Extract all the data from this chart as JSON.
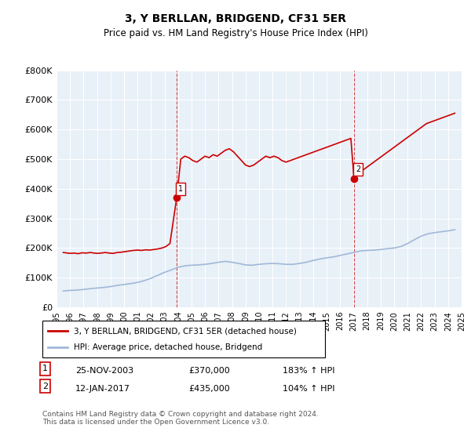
{
  "title": "3, Y BERLLAN, BRIDGEND, CF31 5ER",
  "subtitle": "Price paid vs. HM Land Registry's House Price Index (HPI)",
  "ylabel": "",
  "ylim": [
    0,
    800000
  ],
  "yticks": [
    0,
    100000,
    200000,
    300000,
    400000,
    500000,
    600000,
    700000,
    800000
  ],
  "ytick_labels": [
    "£0",
    "£100K",
    "£200K",
    "£300K",
    "£400K",
    "£500K",
    "£600K",
    "£700K",
    "£800K"
  ],
  "background_color": "#ffffff",
  "plot_bg_color": "#e8f0f8",
  "grid_color": "#ffffff",
  "hpi_line_color": "#a0b8d8",
  "price_line_color": "#cc0000",
  "sale1_date_num": 2003.9,
  "sale1_price": 370000,
  "sale2_date_num": 2017.03,
  "sale2_price": 435000,
  "sale1_label": "1",
  "sale2_label": "2",
  "legend_label_price": "3, Y BERLLAN, BRIDGEND, CF31 5ER (detached house)",
  "legend_label_hpi": "HPI: Average price, detached house, Bridgend",
  "table_row1": [
    "1",
    "25-NOV-2003",
    "£370,000",
    "183% ↑ HPI"
  ],
  "table_row2": [
    "2",
    "12-JAN-2017",
    "£435,000",
    "104% ↑ HPI"
  ],
  "footer": "Contains HM Land Registry data © Crown copyright and database right 2024.\nThis data is licensed under the Open Government Licence v3.0.",
  "hpi_data": {
    "years": [
      1995.5,
      1996.0,
      1996.5,
      1997.0,
      1997.5,
      1998.0,
      1998.5,
      1999.0,
      1999.5,
      2000.0,
      2000.5,
      2001.0,
      2001.5,
      2002.0,
      2002.5,
      2003.0,
      2003.5,
      2004.0,
      2004.5,
      2005.0,
      2005.5,
      2006.0,
      2006.5,
      2007.0,
      2007.5,
      2008.0,
      2008.5,
      2009.0,
      2009.5,
      2010.0,
      2010.5,
      2011.0,
      2011.5,
      2012.0,
      2012.5,
      2013.0,
      2013.5,
      2014.0,
      2014.5,
      2015.0,
      2015.5,
      2016.0,
      2016.5,
      2017.0,
      2017.5,
      2018.0,
      2018.5,
      2019.0,
      2019.5,
      2020.0,
      2020.5,
      2021.0,
      2021.5,
      2022.0,
      2022.5,
      2023.0,
      2023.5,
      2024.0,
      2024.5
    ],
    "values": [
      55000,
      57000,
      58000,
      60000,
      63000,
      65000,
      67000,
      70000,
      74000,
      77000,
      80000,
      84000,
      90000,
      98000,
      108000,
      118000,
      126000,
      135000,
      140000,
      142000,
      143000,
      145000,
      148000,
      152000,
      155000,
      152000,
      148000,
      143000,
      142000,
      145000,
      147000,
      148000,
      147000,
      145000,
      145000,
      148000,
      152000,
      158000,
      163000,
      167000,
      170000,
      175000,
      180000,
      185000,
      190000,
      192000,
      193000,
      195000,
      198000,
      200000,
      205000,
      215000,
      228000,
      240000,
      248000,
      252000,
      255000,
      258000,
      262000
    ]
  },
  "price_data": {
    "years": [
      1995.5,
      1996.0,
      1996.3,
      1996.6,
      1996.9,
      1997.2,
      1997.5,
      1997.8,
      1998.0,
      1998.3,
      1998.6,
      1998.9,
      1999.2,
      1999.5,
      1999.8,
      2000.1,
      2000.4,
      2000.7,
      2001.0,
      2001.3,
      2001.6,
      2001.9,
      2002.2,
      2002.5,
      2002.8,
      2003.1,
      2003.4,
      2003.9,
      2004.2,
      2004.5,
      2004.8,
      2005.1,
      2005.4,
      2005.7,
      2006.0,
      2006.3,
      2006.6,
      2006.9,
      2007.2,
      2007.5,
      2007.8,
      2008.1,
      2008.4,
      2008.7,
      2009.0,
      2009.3,
      2009.6,
      2009.9,
      2010.2,
      2010.5,
      2010.8,
      2011.1,
      2011.4,
      2011.7,
      2012.0,
      2012.3,
      2012.6,
      2012.9,
      2013.2,
      2013.5,
      2013.8,
      2014.1,
      2014.4,
      2014.7,
      2015.0,
      2015.3,
      2015.6,
      2015.9,
      2016.2,
      2016.5,
      2016.8,
      2017.03,
      2017.3,
      2017.6,
      2017.9,
      2018.2,
      2018.5,
      2018.8,
      2019.1,
      2019.4,
      2019.7,
      2020.0,
      2020.3,
      2020.6,
      2020.9,
      2021.2,
      2021.5,
      2021.8,
      2022.1,
      2022.4,
      2022.7,
      2023.0,
      2023.3,
      2023.6,
      2023.9,
      2024.2,
      2024.5
    ],
    "values": [
      185000,
      182000,
      183000,
      181000,
      184000,
      183000,
      185000,
      183000,
      182000,
      183000,
      185000,
      183000,
      182000,
      185000,
      186000,
      188000,
      190000,
      192000,
      193000,
      192000,
      194000,
      193000,
      195000,
      197000,
      200000,
      205000,
      215000,
      370000,
      500000,
      510000,
      505000,
      495000,
      490000,
      500000,
      510000,
      505000,
      515000,
      510000,
      520000,
      530000,
      535000,
      525000,
      510000,
      495000,
      480000,
      475000,
      480000,
      490000,
      500000,
      510000,
      505000,
      510000,
      505000,
      495000,
      490000,
      495000,
      500000,
      505000,
      510000,
      515000,
      520000,
      525000,
      530000,
      535000,
      540000,
      545000,
      550000,
      555000,
      560000,
      565000,
      570000,
      435000,
      450000,
      460000,
      470000,
      480000,
      490000,
      500000,
      510000,
      520000,
      530000,
      540000,
      550000,
      560000,
      570000,
      580000,
      590000,
      600000,
      610000,
      620000,
      625000,
      630000,
      635000,
      640000,
      645000,
      650000,
      655000
    ]
  },
  "xmin": 1995,
  "xmax": 2025,
  "xticks": [
    1995,
    1996,
    1997,
    1998,
    1999,
    2000,
    2001,
    2002,
    2003,
    2004,
    2005,
    2006,
    2007,
    2008,
    2009,
    2010,
    2011,
    2012,
    2013,
    2014,
    2015,
    2016,
    2017,
    2018,
    2019,
    2020,
    2021,
    2022,
    2023,
    2024,
    2025
  ]
}
